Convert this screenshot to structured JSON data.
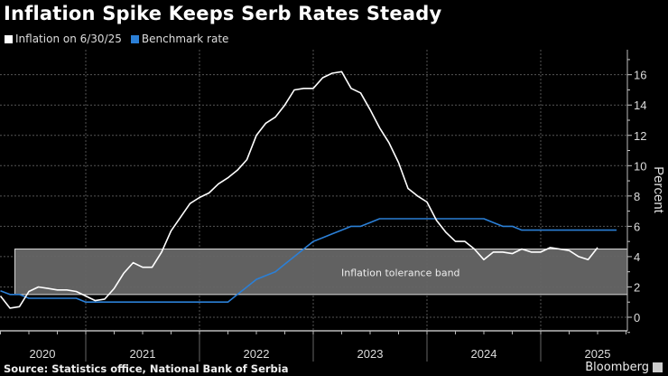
{
  "header": {
    "title": "Inflation Spike Keeps Serb Rates Steady"
  },
  "footer": {
    "source": "Source: Statistics office, National Bank of Serbia",
    "logo": "Bloomberg"
  },
  "colors": {
    "background": "#000000",
    "inflation": "#ffffff",
    "benchmark": "#2b7fd6",
    "band_fill": "#666666",
    "band_border": "#d8d8d8",
    "grid": "#555555"
  },
  "chart_data": {
    "type": "line",
    "title": "Inflation Spike Keeps Serb Rates Steady",
    "ylabel": "Percent",
    "xlabel": "",
    "ylim": [
      -1,
      17
    ],
    "yticks": [
      0,
      2,
      4,
      6,
      8,
      10,
      12,
      14,
      16
    ],
    "ytick_labels": [
      "0",
      "2",
      "4",
      "6",
      "8",
      "10",
      "12",
      "14",
      "16"
    ],
    "xtick_labels": [
      "2020",
      "2021",
      "2022",
      "2023",
      "2024",
      "2025"
    ],
    "xlim": [
      "2020-03",
      "2025-09"
    ],
    "grid": true,
    "y_axis_side": "right",
    "legend_placement": "top-left",
    "series": [
      {
        "name": "Inflation on 6/30/25",
        "start": "2020-03",
        "frequency": "monthly",
        "values": [
          1.4,
          0.6,
          0.7,
          1.7,
          2.0,
          1.9,
          1.8,
          1.8,
          1.7,
          1.4,
          1.1,
          1.2,
          1.9,
          2.9,
          3.6,
          3.3,
          3.3,
          4.3,
          5.7,
          6.6,
          7.5,
          7.9,
          8.2,
          8.8,
          9.2,
          9.7,
          10.4,
          12.0,
          12.8,
          13.2,
          14.0,
          15.0,
          15.1,
          15.1,
          15.8,
          16.1,
          16.2,
          15.1,
          14.8,
          13.7,
          12.5,
          11.5,
          10.2,
          8.5,
          8.0,
          7.6,
          6.4,
          5.6,
          5.0,
          5.0,
          4.5,
          3.8,
          4.3,
          4.3,
          4.2,
          4.5,
          4.3,
          4.3,
          4.6,
          4.5,
          4.4,
          4.0,
          3.8,
          4.6
        ]
      },
      {
        "name": "Benchmark rate",
        "start": "2020-03",
        "frequency": "monthly",
        "values": [
          1.75,
          1.5,
          1.5,
          1.25,
          1.25,
          1.25,
          1.25,
          1.25,
          1.25,
          1.0,
          1.0,
          1.0,
          1.0,
          1.0,
          1.0,
          1.0,
          1.0,
          1.0,
          1.0,
          1.0,
          1.0,
          1.0,
          1.0,
          1.0,
          1.0,
          1.5,
          2.0,
          2.5,
          2.75,
          3.0,
          3.5,
          4.0,
          4.5,
          5.0,
          5.25,
          5.5,
          5.75,
          6.0,
          6.0,
          6.25,
          6.5,
          6.5,
          6.5,
          6.5,
          6.5,
          6.5,
          6.5,
          6.5,
          6.5,
          6.5,
          6.5,
          6.5,
          6.25,
          6.0,
          6.0,
          5.75,
          5.75,
          5.75,
          5.75,
          5.75,
          5.75,
          5.75,
          5.75,
          5.75,
          5.75,
          5.75
        ]
      }
    ],
    "annotations": [
      {
        "type": "band",
        "label": "Inflation tolerance band",
        "y_from": 1.5,
        "y_to": 4.5,
        "x_from": "2020-05",
        "x_to": "2025-09"
      }
    ]
  }
}
